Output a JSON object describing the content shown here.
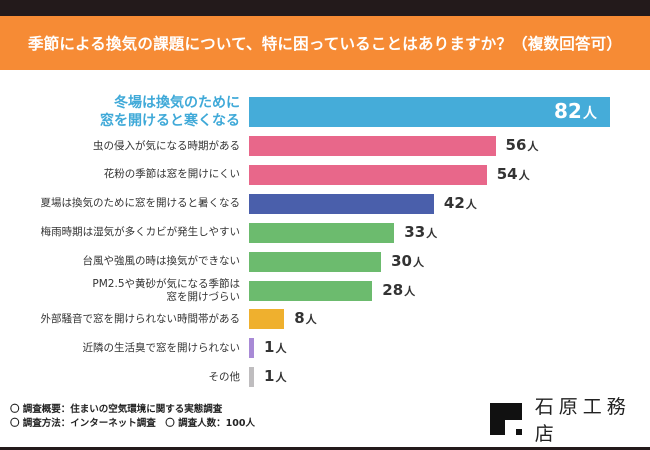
{
  "header": {
    "title": "季節による換気の課題について、特に困っていることはありますか？（複数回答可）"
  },
  "chart_data": {
    "type": "bar",
    "orientation": "horizontal",
    "title": "季節による換気の課題について、特に困っていることはありますか？（複数回答可）",
    "unit": "人",
    "xlim": [
      0,
      82
    ],
    "categories": [
      "冬場は換気のために\n窓を開けると寒くなる",
      "虫の侵入が気になる時期がある",
      "花粉の季節は窓を開けにくい",
      "夏場は換気のために窓を開けると暑くなる",
      "梅雨時期は湿気が多くカビが発生しやすい",
      "台風や強風の時は換気ができない",
      "PM2.5や黄砂が気になる季節は\n窓を開けづらい",
      "外部騒音で窓を開けられない時間帯がある",
      "近隣の生活臭で窓を開けられない",
      "その他"
    ],
    "values": [
      82,
      56,
      54,
      42,
      33,
      30,
      28,
      8,
      1,
      1
    ],
    "colors": [
      "#45acd9",
      "#e8678a",
      "#e8678a",
      "#4a5fab",
      "#6cbb6e",
      "#6cbb6e",
      "#6cbb6e",
      "#efb02e",
      "#a88ad6",
      "#bfbdbf"
    ],
    "highlight_index": 0
  },
  "notes": {
    "line1": "〇 調査概要：住まいの空気環境に関する実態調査",
    "line2": "〇 調査方法：インターネット調査　〇 調査人数：100人"
  },
  "logo": {
    "text": "石原工務店"
  }
}
